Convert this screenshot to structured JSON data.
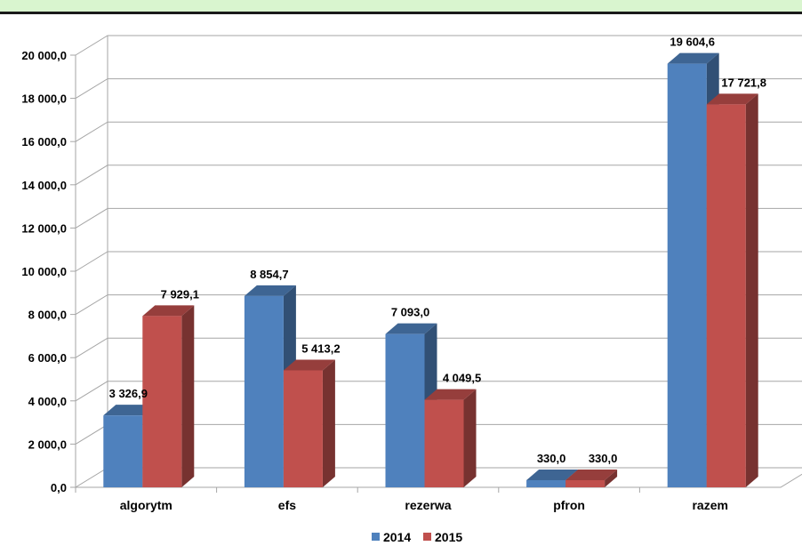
{
  "chart_data": {
    "type": "bar",
    "categories": [
      "algorytm",
      "efs",
      "rezerwa",
      "pfron",
      "razem"
    ],
    "series": [
      {
        "name": "2014",
        "values": [
          3326.9,
          8854.7,
          7093.0,
          330.0,
          19604.6
        ],
        "labels": [
          "3 326,9",
          "8 854,7",
          "7 093,0",
          "330,0",
          "19 604,6"
        ],
        "color": "#4f81bd"
      },
      {
        "name": "2015",
        "values": [
          7929.1,
          5413.2,
          4049.5,
          330.0,
          17721.8
        ],
        "labels": [
          "7 929,1",
          "5 413,2",
          "4 049,5",
          "330,0",
          "17 721,8"
        ],
        "color": "#c0504d"
      }
    ],
    "ylim": [
      0,
      20000
    ],
    "ytick_values": [
      0,
      2000,
      4000,
      6000,
      8000,
      10000,
      12000,
      14000,
      16000,
      18000,
      20000
    ],
    "yticks": [
      "0,0",
      "2 000,0",
      "4 000,0",
      "6 000,0",
      "8 000,0",
      "10 000,0",
      "12 000,0",
      "14 000,0",
      "16 000,0",
      "18 000,0",
      "20 000,0"
    ],
    "grid": true,
    "legend": "bottom-center",
    "style": "3d-clustered-column"
  },
  "colors": {
    "band": "#d9f5cf",
    "grid": "#a6a6a6"
  }
}
